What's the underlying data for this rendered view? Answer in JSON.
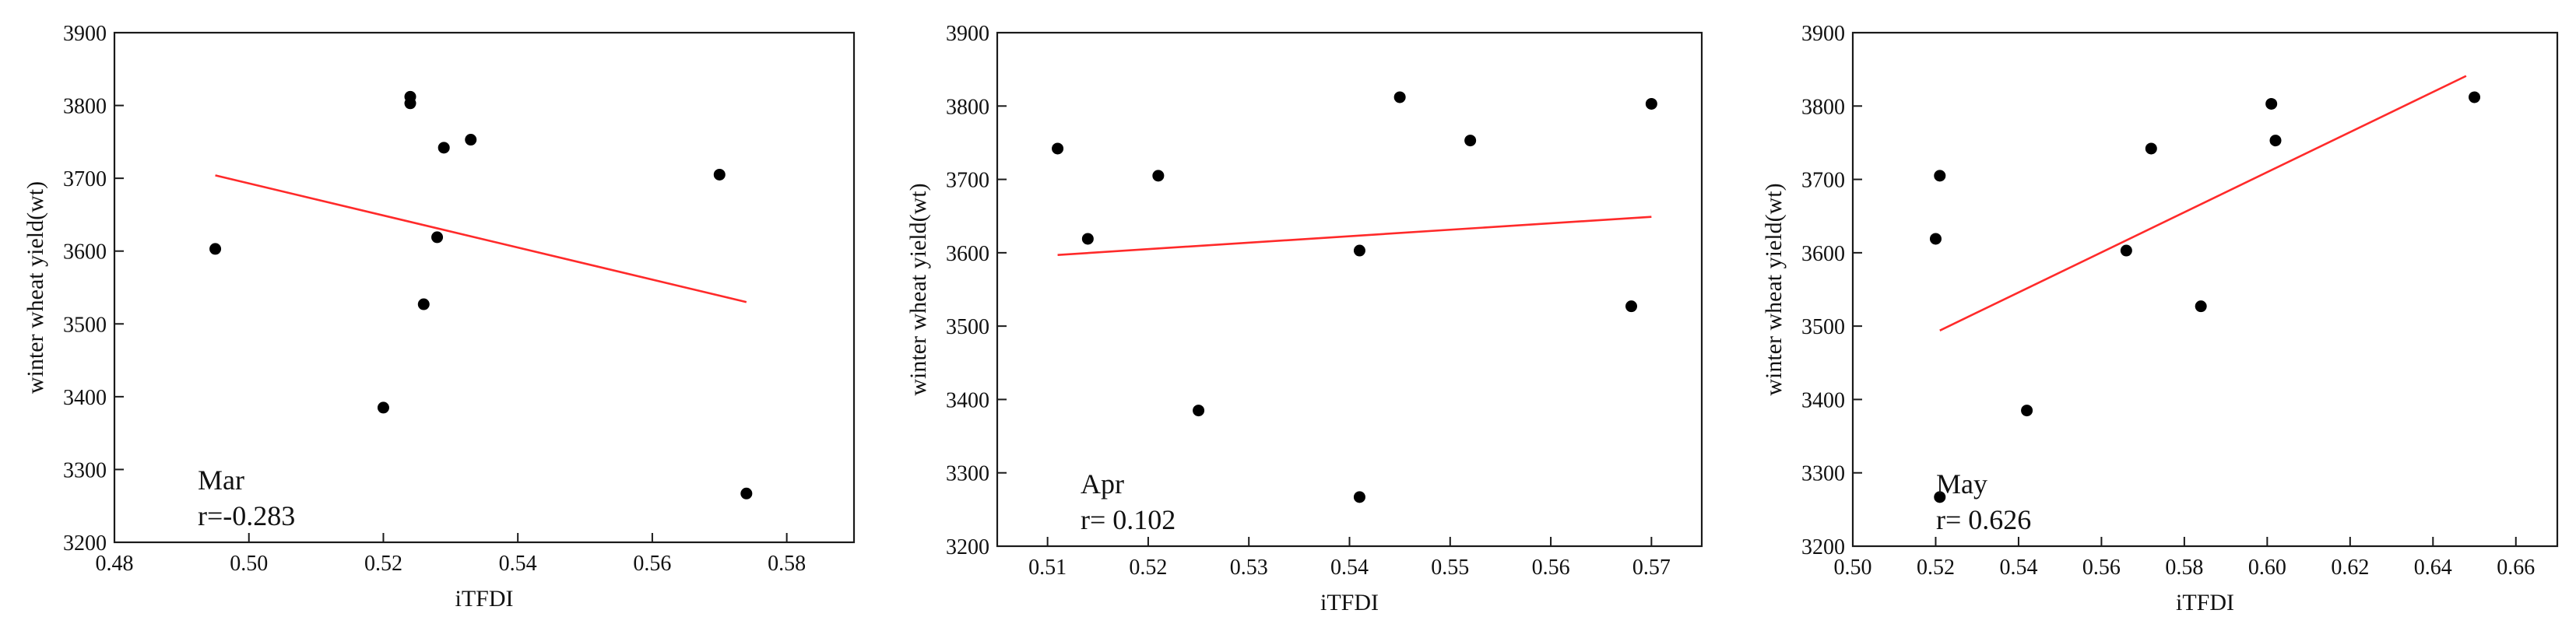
{
  "chart_data": [
    {
      "type": "scatter",
      "month_label": "Mar",
      "r_label": "r=-0.283",
      "xlabel": "iTFDI",
      "ylabel": "winter wheat yield(wt)",
      "xlim": [
        0.48,
        0.59
      ],
      "ylim": [
        3200,
        3900
      ],
      "xticks": [
        "0.48",
        "0.50",
        "0.52",
        "0.54",
        "0.56",
        "0.58"
      ],
      "xtick_values": [
        0.48,
        0.5,
        0.52,
        0.54,
        0.56,
        0.58
      ],
      "yticks": [
        "3200",
        "3300",
        "3400",
        "3500",
        "3600",
        "3700",
        "3800",
        "3900"
      ],
      "ytick_values": [
        3200,
        3300,
        3400,
        3500,
        3600,
        3700,
        3800,
        3900
      ],
      "points": [
        {
          "x": 0.495,
          "y": 3603
        },
        {
          "x": 0.52,
          "y": 3385
        },
        {
          "x": 0.524,
          "y": 3812
        },
        {
          "x": 0.524,
          "y": 3803
        },
        {
          "x": 0.526,
          "y": 3527
        },
        {
          "x": 0.528,
          "y": 3619
        },
        {
          "x": 0.529,
          "y": 3742
        },
        {
          "x": 0.533,
          "y": 3753
        },
        {
          "x": 0.57,
          "y": 3705
        },
        {
          "x": 0.574,
          "y": 3267
        }
      ],
      "fit_line": {
        "x": [
          0.495,
          0.574
        ],
        "y": [
          3704,
          3530
        ]
      }
    },
    {
      "type": "scatter",
      "month_label": "Apr",
      "r_label": "r= 0.102",
      "xlabel": "iTFDI",
      "ylabel": "winter wheat yield(wt)",
      "xlim": [
        0.505,
        0.575
      ],
      "ylim": [
        3200,
        3900
      ],
      "xticks": [
        "0.51",
        "0.52",
        "0.53",
        "0.54",
        "0.55",
        "0.56",
        "0.57"
      ],
      "xtick_values": [
        0.51,
        0.52,
        0.53,
        0.54,
        0.55,
        0.56,
        0.57
      ],
      "yticks": [
        "3200",
        "3300",
        "3400",
        "3500",
        "3600",
        "3700",
        "3800",
        "3900"
      ],
      "ytick_values": [
        3200,
        3300,
        3400,
        3500,
        3600,
        3700,
        3800,
        3900
      ],
      "points": [
        {
          "x": 0.511,
          "y": 3742
        },
        {
          "x": 0.514,
          "y": 3619
        },
        {
          "x": 0.521,
          "y": 3705
        },
        {
          "x": 0.525,
          "y": 3385
        },
        {
          "x": 0.541,
          "y": 3603
        },
        {
          "x": 0.541,
          "y": 3267
        },
        {
          "x": 0.545,
          "y": 3812
        },
        {
          "x": 0.552,
          "y": 3753
        },
        {
          "x": 0.568,
          "y": 3527
        },
        {
          "x": 0.57,
          "y": 3803
        }
      ],
      "fit_line": {
        "x": [
          0.511,
          0.57
        ],
        "y": [
          3597,
          3649
        ]
      }
    },
    {
      "type": "scatter",
      "month_label": "May",
      "r_label": "r= 0.626",
      "xlabel": "iTFDI",
      "ylabel": "winter wheat yield(wt)",
      "xlim": [
        0.5,
        0.67
      ],
      "ylim": [
        3200,
        3900
      ],
      "xticks": [
        "0.50",
        "0.52",
        "0.54",
        "0.56",
        "0.58",
        "0.60",
        "0.62",
        "0.64",
        "0.66"
      ],
      "xtick_values": [
        0.5,
        0.52,
        0.54,
        0.56,
        0.58,
        0.6,
        0.62,
        0.64,
        0.66
      ],
      "yticks": [
        "3200",
        "3300",
        "3400",
        "3500",
        "3600",
        "3700",
        "3800",
        "3900"
      ],
      "ytick_values": [
        3200,
        3300,
        3400,
        3500,
        3600,
        3700,
        3800,
        3900
      ],
      "points": [
        {
          "x": 0.52,
          "y": 3619
        },
        {
          "x": 0.521,
          "y": 3705
        },
        {
          "x": 0.521,
          "y": 3267
        },
        {
          "x": 0.542,
          "y": 3385
        },
        {
          "x": 0.566,
          "y": 3603
        },
        {
          "x": 0.572,
          "y": 3742
        },
        {
          "x": 0.584,
          "y": 3527
        },
        {
          "x": 0.601,
          "y": 3803
        },
        {
          "x": 0.602,
          "y": 3753
        },
        {
          "x": 0.65,
          "y": 3812
        }
      ],
      "fit_line": {
        "x": [
          0.521,
          0.648
        ],
        "y": [
          3494,
          3841
        ]
      }
    }
  ],
  "colors": {
    "points": "#000000",
    "fit_line": "#ff2a2a",
    "axes": "#1a1a1a",
    "background": "#ffffff"
  }
}
